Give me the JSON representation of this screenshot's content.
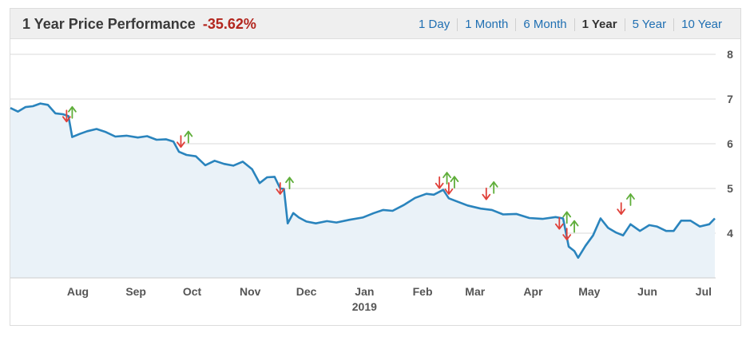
{
  "header": {
    "title": "1 Year Price Performance",
    "performance": "-35.62%",
    "ranges": [
      {
        "label": "1 Day",
        "active": false
      },
      {
        "label": "1 Month",
        "active": false
      },
      {
        "label": "6 Month",
        "active": false
      },
      {
        "label": "1 Year",
        "active": true
      },
      {
        "label": "5 Year",
        "active": false
      },
      {
        "label": "10 Year",
        "active": false
      }
    ]
  },
  "colors": {
    "line": "#2a84bd",
    "area": "#eaf2f8",
    "down_arrow": "#e0413a",
    "up_arrow": "#5fae3a",
    "grid": "#d9d9d9"
  },
  "chart_data": {
    "type": "area",
    "ylim": [
      3,
      8
    ],
    "y_ticks": [
      4,
      5,
      6,
      7,
      8
    ],
    "x_tick_labels": [
      "Aug",
      "Sep",
      "Oct",
      "Nov",
      "Dec",
      "Jan",
      "Feb",
      "Mar",
      "Apr",
      "May",
      "Jun",
      "Jul"
    ],
    "x_tick_dates": [
      "2018-08-01",
      "2018-09-01",
      "2018-10-01",
      "2018-11-01",
      "2018-12-01",
      "2019-01-01",
      "2019-02-01",
      "2019-03-01",
      "2019-04-01",
      "2019-05-01",
      "2019-06-01",
      "2019-07-01"
    ],
    "year_label": "2019",
    "x_range": [
      "2018-07-10",
      "2019-07-21"
    ],
    "series": [
      {
        "points": [
          [
            "2018-07-10",
            6.8
          ],
          [
            "2018-07-14",
            6.72
          ],
          [
            "2018-07-18",
            6.82
          ],
          [
            "2018-07-22",
            6.84
          ],
          [
            "2018-07-26",
            6.9
          ],
          [
            "2018-07-30",
            6.87
          ],
          [
            "2018-08-03",
            6.68
          ],
          [
            "2018-08-07",
            6.66
          ],
          [
            "2018-08-10",
            6.62
          ],
          [
            "2018-08-12",
            6.15
          ],
          [
            "2018-08-16",
            6.22
          ],
          [
            "2018-08-20",
            6.28
          ],
          [
            "2018-08-25",
            6.33
          ],
          [
            "2018-08-30",
            6.26
          ],
          [
            "2018-09-04",
            6.16
          ],
          [
            "2018-09-10",
            6.18
          ],
          [
            "2018-09-16",
            6.14
          ],
          [
            "2018-09-21",
            6.17
          ],
          [
            "2018-09-26",
            6.09
          ],
          [
            "2018-10-01",
            6.1
          ],
          [
            "2018-10-05",
            6.05
          ],
          [
            "2018-10-08",
            5.82
          ],
          [
            "2018-10-12",
            5.75
          ],
          [
            "2018-10-17",
            5.72
          ],
          [
            "2018-10-22",
            5.52
          ],
          [
            "2018-10-27",
            5.62
          ],
          [
            "2018-11-01",
            5.55
          ],
          [
            "2018-11-06",
            5.51
          ],
          [
            "2018-11-11",
            5.6
          ],
          [
            "2018-11-16",
            5.43
          ],
          [
            "2018-11-20",
            5.12
          ],
          [
            "2018-11-24",
            5.25
          ],
          [
            "2018-11-28",
            5.26
          ],
          [
            "2018-12-01",
            5.0
          ],
          [
            "2018-12-03",
            4.99
          ],
          [
            "2018-12-05",
            4.22
          ],
          [
            "2018-12-08",
            4.45
          ],
          [
            "2018-12-11",
            4.35
          ],
          [
            "2018-12-15",
            4.26
          ],
          [
            "2018-12-20",
            4.22
          ],
          [
            "2018-12-26",
            4.27
          ],
          [
            "2018-12-31",
            4.24
          ],
          [
            "2019-01-07",
            4.3
          ],
          [
            "2019-01-14",
            4.35
          ],
          [
            "2019-01-20",
            4.45
          ],
          [
            "2019-01-25",
            4.52
          ],
          [
            "2019-01-30",
            4.5
          ],
          [
            "2019-02-05",
            4.63
          ],
          [
            "2019-02-11",
            4.79
          ],
          [
            "2019-02-17",
            4.88
          ],
          [
            "2019-02-21",
            4.86
          ],
          [
            "2019-02-26",
            4.97
          ],
          [
            "2019-03-01",
            4.78
          ],
          [
            "2019-03-06",
            4.7
          ],
          [
            "2019-03-11",
            4.62
          ],
          [
            "2019-03-18",
            4.55
          ],
          [
            "2019-03-24",
            4.52
          ],
          [
            "2019-03-30",
            4.42
          ],
          [
            "2019-04-06",
            4.43
          ],
          [
            "2019-04-13",
            4.34
          ],
          [
            "2019-04-20",
            4.32
          ],
          [
            "2019-04-27",
            4.36
          ],
          [
            "2019-05-01",
            4.33
          ],
          [
            "2019-05-04",
            3.7
          ],
          [
            "2019-05-07",
            3.6
          ],
          [
            "2019-05-09",
            3.45
          ],
          [
            "2019-05-13",
            3.72
          ],
          [
            "2019-05-17",
            3.95
          ],
          [
            "2019-05-21",
            4.33
          ],
          [
            "2019-05-25",
            4.12
          ],
          [
            "2019-05-29",
            4.02
          ],
          [
            "2019-06-02",
            3.95
          ],
          [
            "2019-06-06",
            4.2
          ],
          [
            "2019-06-11",
            4.05
          ],
          [
            "2019-06-16",
            4.18
          ],
          [
            "2019-06-20",
            4.15
          ],
          [
            "2019-06-25",
            4.05
          ],
          [
            "2019-06-29",
            4.05
          ],
          [
            "2019-07-03",
            4.28
          ],
          [
            "2019-07-08",
            4.28
          ],
          [
            "2019-07-13",
            4.15
          ],
          [
            "2019-07-18",
            4.2
          ],
          [
            "2019-07-21",
            4.33
          ]
        ]
      }
    ],
    "events": [
      {
        "date": "2018-08-09",
        "value": 6.62,
        "direction": "down"
      },
      {
        "date": "2018-08-12",
        "value": 6.7,
        "direction": "up"
      },
      {
        "date": "2018-10-09",
        "value": 6.05,
        "direction": "down"
      },
      {
        "date": "2018-10-13",
        "value": 6.15,
        "direction": "up"
      },
      {
        "date": "2018-12-01",
        "value": 5.0,
        "direction": "down"
      },
      {
        "date": "2018-12-06",
        "value": 5.12,
        "direction": "up"
      },
      {
        "date": "2019-02-24",
        "value": 5.13,
        "direction": "down"
      },
      {
        "date": "2019-02-28",
        "value": 5.23,
        "direction": "up"
      },
      {
        "date": "2019-03-01",
        "value": 5.0,
        "direction": "down"
      },
      {
        "date": "2019-03-04",
        "value": 5.14,
        "direction": "up"
      },
      {
        "date": "2019-03-21",
        "value": 4.88,
        "direction": "down"
      },
      {
        "date": "2019-03-25",
        "value": 5.02,
        "direction": "up"
      },
      {
        "date": "2019-04-29",
        "value": 4.22,
        "direction": "down"
      },
      {
        "date": "2019-05-03",
        "value": 4.35,
        "direction": "up"
      },
      {
        "date": "2019-05-03",
        "value": 3.98,
        "direction": "down"
      },
      {
        "date": "2019-05-07",
        "value": 4.15,
        "direction": "up"
      },
      {
        "date": "2019-06-01",
        "value": 4.55,
        "direction": "down"
      },
      {
        "date": "2019-06-06",
        "value": 4.75,
        "direction": "up"
      }
    ]
  }
}
